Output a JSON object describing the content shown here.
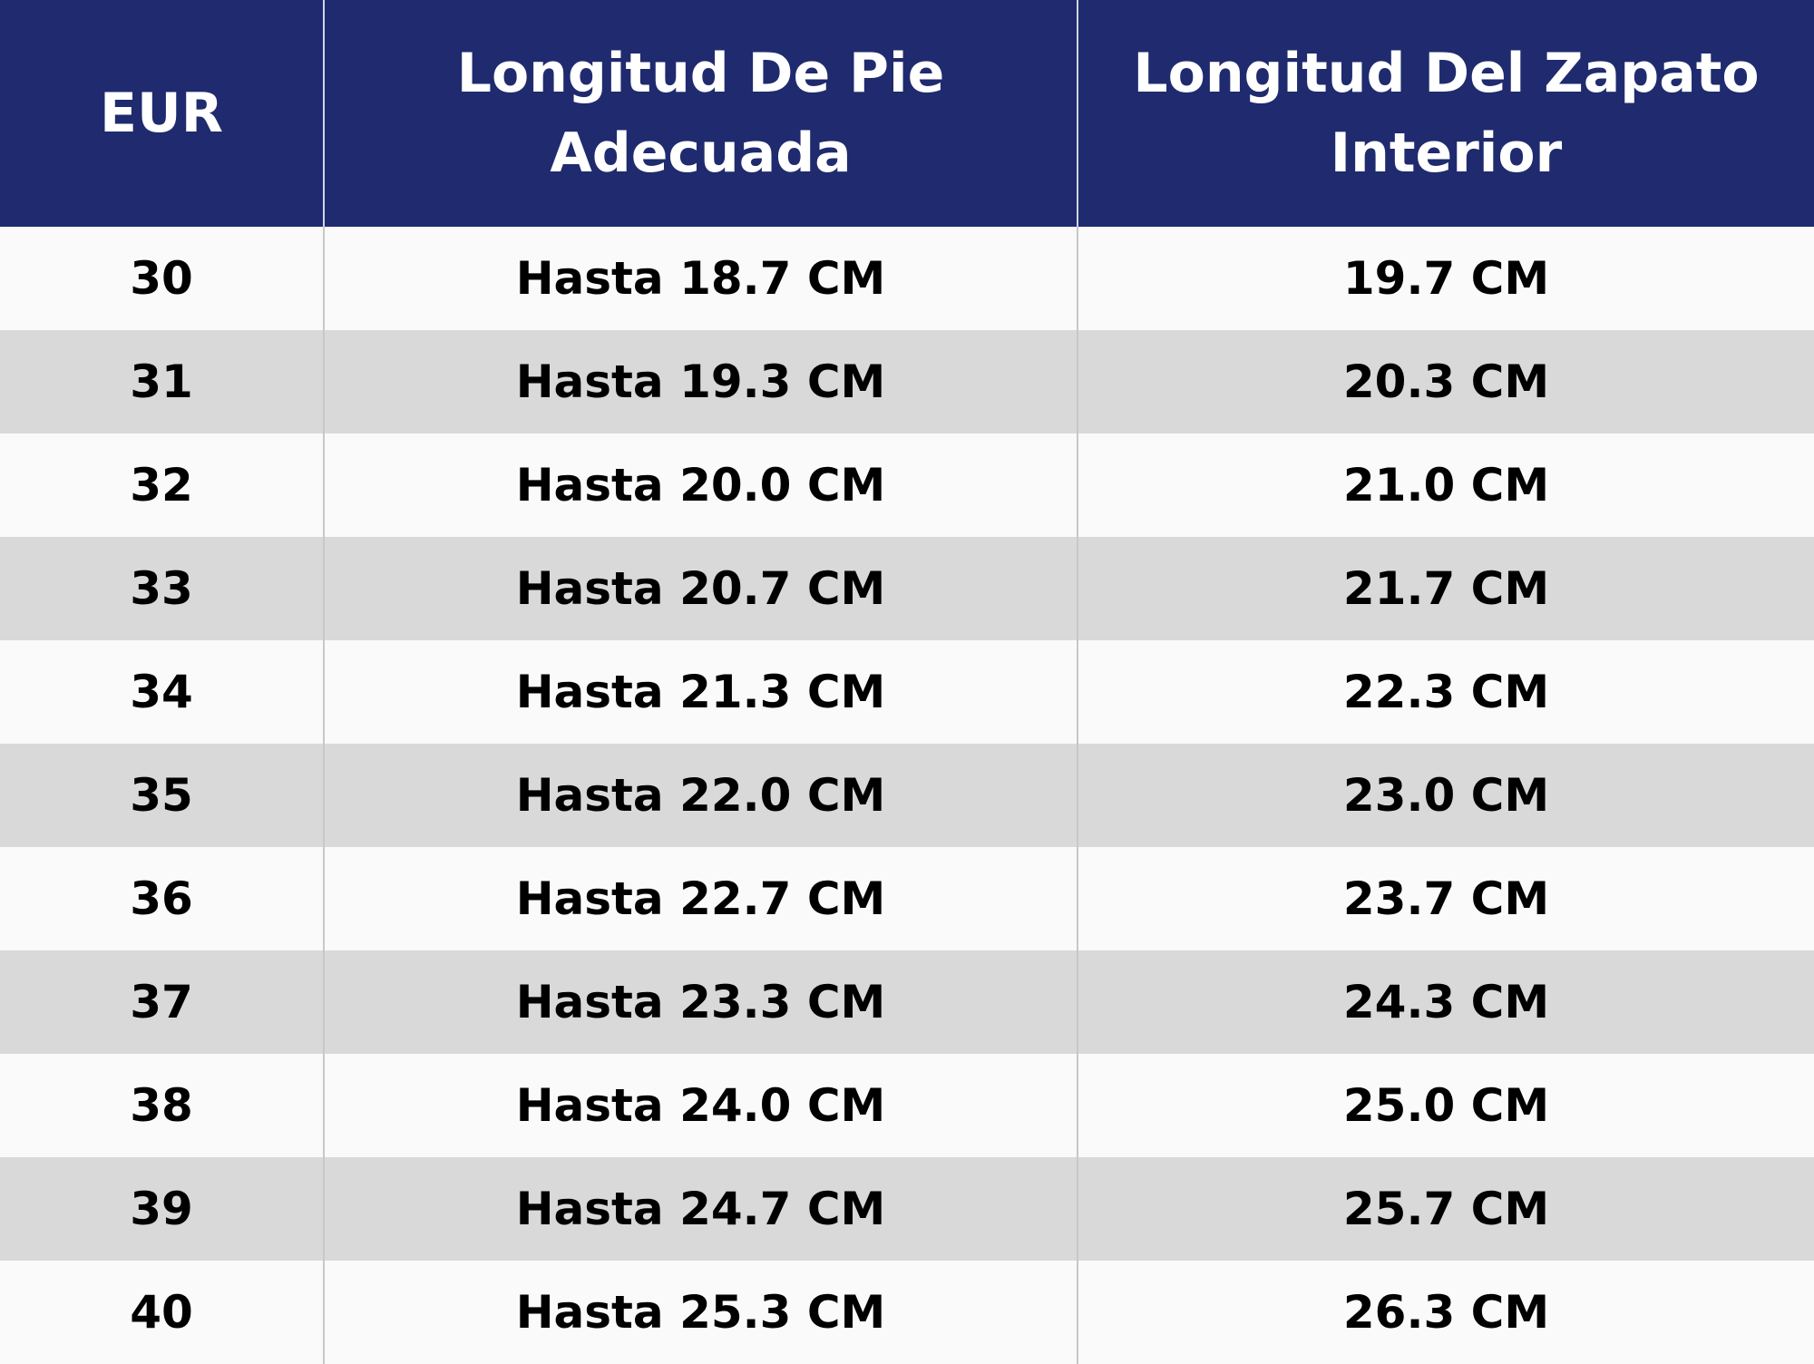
{
  "table": {
    "headers": [
      "EUR",
      "Longitud De Pie Adecuada",
      "Longitud Del Zapato Interior"
    ],
    "rows": [
      [
        "30",
        "Hasta 18.7 CM",
        "19.7 CM"
      ],
      [
        "31",
        "Hasta 19.3 CM",
        "20.3 CM"
      ],
      [
        "32",
        "Hasta 20.0 CM",
        "21.0 CM"
      ],
      [
        "33",
        "Hasta 20.7 CM",
        "21.7 CM"
      ],
      [
        "34",
        "Hasta 21.3 CM",
        "22.3 CM"
      ],
      [
        "35",
        "Hasta 22.0 CM",
        "23.0 CM"
      ],
      [
        "36",
        "Hasta 22.7 CM",
        "23.7 CM"
      ],
      [
        "37",
        "Hasta 23.3 CM",
        "24.3 CM"
      ],
      [
        "38",
        "Hasta 24.0 CM",
        "25.0 CM"
      ],
      [
        "39",
        "Hasta 24.7 CM",
        "25.7 CM"
      ],
      [
        "40",
        "Hasta 25.3 CM",
        "26.3 CM"
      ]
    ]
  }
}
